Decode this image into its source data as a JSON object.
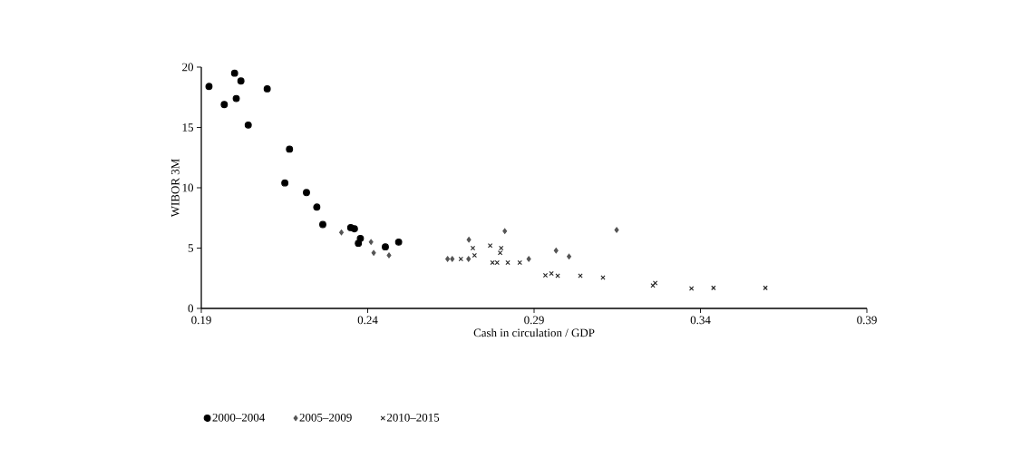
{
  "chart_data": {
    "type": "scatter",
    "xlabel": "Cash in circulation / GDP",
    "ylabel": "WIBOR 3M",
    "xlim": [
      0.19,
      0.39
    ],
    "xticks": [
      0.19,
      0.24,
      0.29,
      0.34,
      0.39
    ],
    "ylim": [
      0,
      20
    ],
    "yticks": [
      0,
      5,
      10,
      15,
      20
    ],
    "grid": false,
    "legend": "bottom left",
    "series": [
      {
        "name": "2000–2004",
        "color": "#000000",
        "marker": "circle",
        "x": [
          0.1923,
          0.1969,
          0.2,
          0.2005,
          0.2019,
          0.2041,
          0.2098,
          0.2151,
          0.2165,
          0.2216,
          0.2247,
          0.2265,
          0.2349,
          0.236,
          0.2372,
          0.2378,
          0.2453,
          0.2493
        ],
        "values": [
          18.4,
          16.9,
          19.5,
          17.4,
          18.85,
          15.2,
          18.2,
          10.4,
          13.2,
          9.6,
          8.4,
          6.95,
          6.7,
          6.6,
          5.4,
          5.8,
          5.1,
          5.5
        ]
      },
      {
        "name": "2005–2009",
        "color": "#555555",
        "marker": "diamond",
        "x": [
          0.2321,
          0.241,
          0.2418,
          0.2464,
          0.264,
          0.2654,
          0.2703,
          0.2704,
          0.2812,
          0.2884,
          0.2966,
          0.3005,
          0.3148
        ],
        "values": [
          6.3,
          5.5,
          4.6,
          4.4,
          4.1,
          4.1,
          4.1,
          5.7,
          6.4,
          4.1,
          4.8,
          4.3,
          6.5
        ]
      },
      {
        "name": "2010–2015",
        "color": "#222222",
        "marker": "cross",
        "x": [
          0.268,
          0.2716,
          0.2721,
          0.2768,
          0.2775,
          0.2789,
          0.2798,
          0.2801,
          0.2821,
          0.2857,
          0.2934,
          0.2952,
          0.2971,
          0.3039,
          0.3107,
          0.3257,
          0.3264,
          0.3373,
          0.3439,
          0.3595
        ],
        "values": [
          4.1,
          5.0,
          4.4,
          5.2,
          3.8,
          3.8,
          4.6,
          5.0,
          3.8,
          3.8,
          2.75,
          2.9,
          2.7,
          2.7,
          2.55,
          1.9,
          2.1,
          1.65,
          1.7,
          1.7
        ]
      }
    ]
  }
}
